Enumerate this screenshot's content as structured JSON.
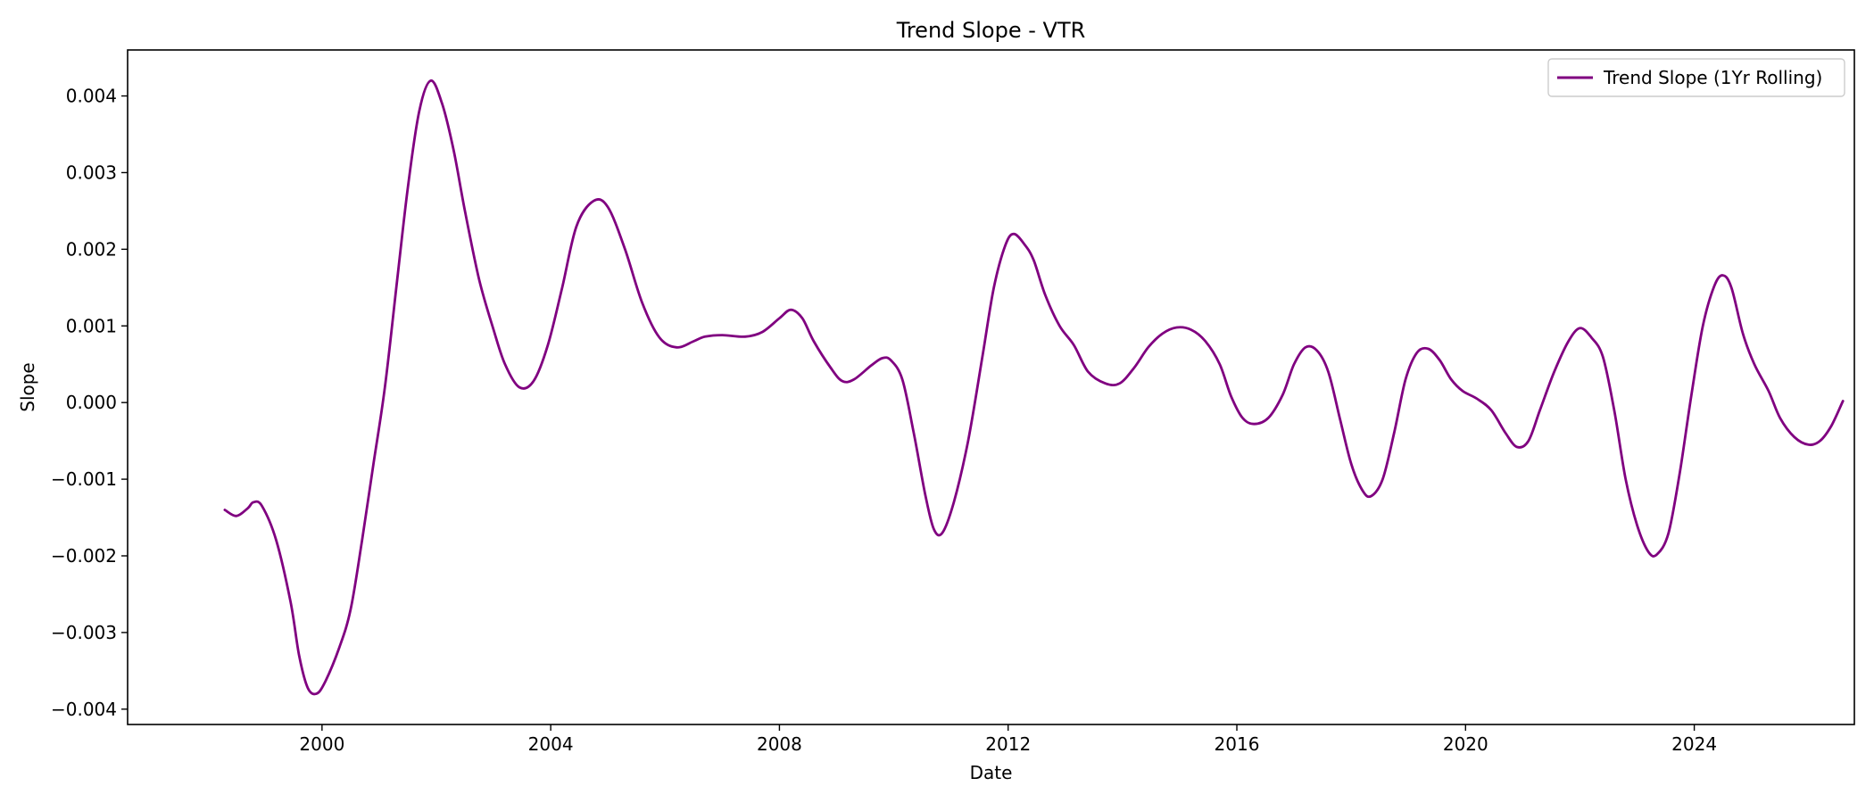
{
  "chart_data": {
    "type": "line",
    "title": "Trend Slope - VTR",
    "xlabel": "Date",
    "ylabel": "Slope",
    "xlim": [
      1996.6,
      2026.8
    ],
    "ylim": [
      -0.0042,
      0.0046
    ],
    "grid": false,
    "legend_position": "top-right",
    "x_ticks": [
      {
        "value": 2000,
        "label": "2000"
      },
      {
        "value": 2004,
        "label": "2004"
      },
      {
        "value": 2008,
        "label": "2008"
      },
      {
        "value": 2012,
        "label": "2012"
      },
      {
        "value": 2016,
        "label": "2016"
      },
      {
        "value": 2020,
        "label": "2020"
      },
      {
        "value": 2024,
        "label": "2024"
      }
    ],
    "y_ticks": [
      {
        "value": -0.004,
        "label": "−0.004"
      },
      {
        "value": -0.003,
        "label": "−0.003"
      },
      {
        "value": -0.002,
        "label": "−0.002"
      },
      {
        "value": -0.001,
        "label": "−0.001"
      },
      {
        "value": 0.0,
        "label": "0.000"
      },
      {
        "value": 0.001,
        "label": "0.001"
      },
      {
        "value": 0.002,
        "label": "0.002"
      },
      {
        "value": 0.003,
        "label": "0.003"
      },
      {
        "value": 0.004,
        "label": "0.004"
      }
    ],
    "series": [
      {
        "name": "Trend Slope (1Yr Rolling)",
        "color": "#800080",
        "points": [
          [
            1998.3,
            -0.0014
          ],
          [
            1998.5,
            -0.00148
          ],
          [
            1998.7,
            -0.00138
          ],
          [
            1998.8,
            -0.0013
          ],
          [
            1998.95,
            -0.00135
          ],
          [
            1999.2,
            -0.0018
          ],
          [
            1999.45,
            -0.0026
          ],
          [
            1999.6,
            -0.0033
          ],
          [
            1999.75,
            -0.00372
          ],
          [
            1999.9,
            -0.0038
          ],
          [
            2000.05,
            -0.00365
          ],
          [
            2000.3,
            -0.0032
          ],
          [
            2000.5,
            -0.0027
          ],
          [
            2000.7,
            -0.0018
          ],
          [
            2000.9,
            -0.0008
          ],
          [
            2001.1,
            0.0002
          ],
          [
            2001.3,
            0.0015
          ],
          [
            2001.5,
            0.0028
          ],
          [
            2001.7,
            0.0038
          ],
          [
            2001.9,
            0.0042
          ],
          [
            2002.1,
            0.0039
          ],
          [
            2002.3,
            0.0033
          ],
          [
            2002.5,
            0.0025
          ],
          [
            2002.75,
            0.0016
          ],
          [
            2003.0,
            0.00095
          ],
          [
            2003.2,
            0.0005
          ],
          [
            2003.45,
            0.0002
          ],
          [
            2003.7,
            0.00028
          ],
          [
            2003.95,
            0.00075
          ],
          [
            2004.2,
            0.0015
          ],
          [
            2004.45,
            0.0023
          ],
          [
            2004.75,
            0.00263
          ],
          [
            2005.0,
            0.00255
          ],
          [
            2005.3,
            0.002
          ],
          [
            2005.6,
            0.0013
          ],
          [
            2005.9,
            0.00085
          ],
          [
            2006.2,
            0.00072
          ],
          [
            2006.5,
            0.0008
          ],
          [
            2006.7,
            0.00086
          ],
          [
            2007.0,
            0.00088
          ],
          [
            2007.4,
            0.00086
          ],
          [
            2007.7,
            0.00092
          ],
          [
            2008.0,
            0.0011
          ],
          [
            2008.2,
            0.00121
          ],
          [
            2008.4,
            0.0011
          ],
          [
            2008.6,
            0.0008
          ],
          [
            2008.9,
            0.00045
          ],
          [
            2009.1,
            0.00028
          ],
          [
            2009.3,
            0.0003
          ],
          [
            2009.6,
            0.00048
          ],
          [
            2009.8,
            0.00058
          ],
          [
            2009.95,
            0.00055
          ],
          [
            2010.15,
            0.0003
          ],
          [
            2010.35,
            -0.0004
          ],
          [
            2010.55,
            -0.0012
          ],
          [
            2010.7,
            -0.00165
          ],
          [
            2010.85,
            -0.0017
          ],
          [
            2011.05,
            -0.0013
          ],
          [
            2011.3,
            -0.0005
          ],
          [
            2011.55,
            0.0006
          ],
          [
            2011.75,
            0.0015
          ],
          [
            2011.95,
            0.00205
          ],
          [
            2012.1,
            0.0022
          ],
          [
            2012.3,
            0.00205
          ],
          [
            2012.45,
            0.00185
          ],
          [
            2012.65,
            0.0014
          ],
          [
            2012.9,
            0.001
          ],
          [
            2013.15,
            0.00075
          ],
          [
            2013.4,
            0.0004
          ],
          [
            2013.7,
            0.00025
          ],
          [
            2013.95,
            0.00025
          ],
          [
            2014.2,
            0.00045
          ],
          [
            2014.45,
            0.00072
          ],
          [
            2014.7,
            0.0009
          ],
          [
            2014.95,
            0.00098
          ],
          [
            2015.2,
            0.00095
          ],
          [
            2015.45,
            0.0008
          ],
          [
            2015.7,
            0.0005
          ],
          [
            2015.9,
            8e-05
          ],
          [
            2016.1,
            -0.0002
          ],
          [
            2016.3,
            -0.00028
          ],
          [
            2016.55,
            -0.0002
          ],
          [
            2016.8,
            0.0001
          ],
          [
            2017.0,
            0.0005
          ],
          [
            2017.2,
            0.00072
          ],
          [
            2017.4,
            0.00068
          ],
          [
            2017.6,
            0.0004
          ],
          [
            2017.8,
            -0.0002
          ],
          [
            2018.0,
            -0.0008
          ],
          [
            2018.2,
            -0.00115
          ],
          [
            2018.35,
            -0.00122
          ],
          [
            2018.55,
            -0.001
          ],
          [
            2018.75,
            -0.0004
          ],
          [
            2018.95,
            0.0003
          ],
          [
            2019.15,
            0.00065
          ],
          [
            2019.35,
            0.0007
          ],
          [
            2019.55,
            0.00055
          ],
          [
            2019.75,
            0.0003
          ],
          [
            2019.95,
            0.00015
          ],
          [
            2020.2,
            5e-05
          ],
          [
            2020.45,
            -0.0001
          ],
          [
            2020.7,
            -0.0004
          ],
          [
            2020.9,
            -0.00058
          ],
          [
            2021.1,
            -0.0005
          ],
          [
            2021.3,
            -0.0001
          ],
          [
            2021.55,
            0.0004
          ],
          [
            2021.8,
            0.0008
          ],
          [
            2022.0,
            0.00097
          ],
          [
            2022.2,
            0.00085
          ],
          [
            2022.4,
            0.0006
          ],
          [
            2022.6,
            -0.0001
          ],
          [
            2022.8,
            -0.001
          ],
          [
            2023.0,
            -0.0016
          ],
          [
            2023.2,
            -0.00195
          ],
          [
            2023.35,
            -0.00198
          ],
          [
            2023.55,
            -0.0017
          ],
          [
            2023.75,
            -0.0009
          ],
          [
            2023.95,
            0.0001
          ],
          [
            2024.15,
            0.001
          ],
          [
            2024.35,
            0.00152
          ],
          [
            2024.5,
            0.00166
          ],
          [
            2024.65,
            0.0015
          ],
          [
            2024.85,
            0.0009
          ],
          [
            2025.05,
            0.0005
          ],
          [
            2025.3,
            0.00015
          ],
          [
            2025.5,
            -0.0002
          ],
          [
            2025.75,
            -0.00045
          ],
          [
            2026.0,
            -0.00055
          ],
          [
            2026.2,
            -0.0005
          ],
          [
            2026.4,
            -0.0003
          ],
          [
            2026.6,
            2e-05
          ]
        ]
      }
    ]
  }
}
